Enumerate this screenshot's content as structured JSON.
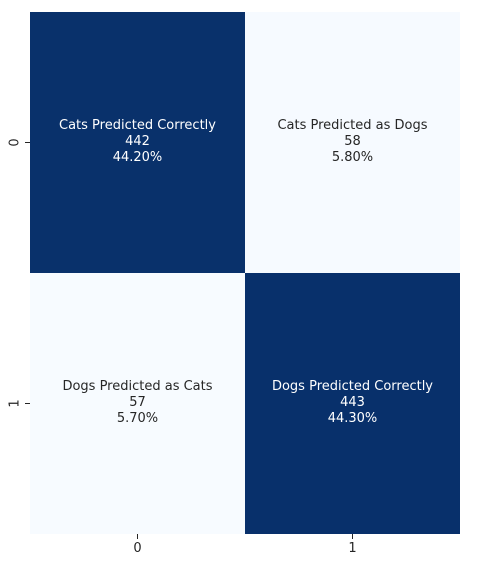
{
  "chart_data": {
    "type": "heatmap",
    "title": "",
    "xlabel": "",
    "ylabel": "",
    "x_categories": [
      "0",
      "1"
    ],
    "y_categories": [
      "0",
      "1"
    ],
    "values": [
      [
        442,
        58
      ],
      [
        57,
        443
      ]
    ],
    "cell_labels": [
      [
        {
          "label": "Cats Predicted Correctly",
          "count": "442",
          "percent": "44.20%"
        },
        {
          "label": "Cats Predicted as Dogs",
          "count": "58",
          "percent": "5.80%"
        }
      ],
      [
        {
          "label": "Dogs Predicted as Cats",
          "count": "57",
          "percent": "5.70%"
        },
        {
          "label": "Dogs Predicted Correctly",
          "count": "443",
          "percent": "44.30%"
        }
      ]
    ],
    "colormap": "Blues",
    "color_low": "#f7fbff",
    "color_high": "#08306b",
    "text_color_dark": "#262626",
    "text_color_light": "#ffffff",
    "colorbar": false
  }
}
